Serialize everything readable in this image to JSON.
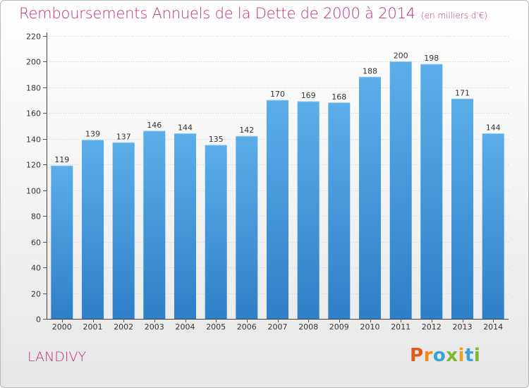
{
  "chart_data": {
    "type": "bar",
    "title": "Remboursements Annuels de la Dette de 2000 à 2014",
    "unit_note": "(en milliers d'€)",
    "categories": [
      "2000",
      "2001",
      "2002",
      "2003",
      "2004",
      "2005",
      "2006",
      "2007",
      "2008",
      "2009",
      "2010",
      "2011",
      "2012",
      "2013",
      "2014"
    ],
    "values": [
      119,
      139,
      137,
      146,
      144,
      135,
      142,
      170,
      169,
      168,
      188,
      200,
      198,
      171,
      144
    ],
    "ylim": [
      0,
      220
    ],
    "yticks": [
      0,
      20,
      40,
      60,
      80,
      100,
      120,
      140,
      160,
      180,
      200,
      220
    ],
    "grid": true,
    "xlabel": "",
    "ylabel": "",
    "bar_color_top": "#5caee9",
    "bar_color_bottom": "#2f7fc8"
  },
  "commune": "LANDIVY",
  "logo": {
    "letters": [
      "P",
      "r",
      "o",
      "x",
      "i",
      "t",
      "i"
    ],
    "colors": [
      "#e05a1a",
      "#f08c1e",
      "#3aa0d8",
      "#7ab832",
      "#e6a321",
      "#3aa0d8",
      "#7ab832"
    ]
  }
}
